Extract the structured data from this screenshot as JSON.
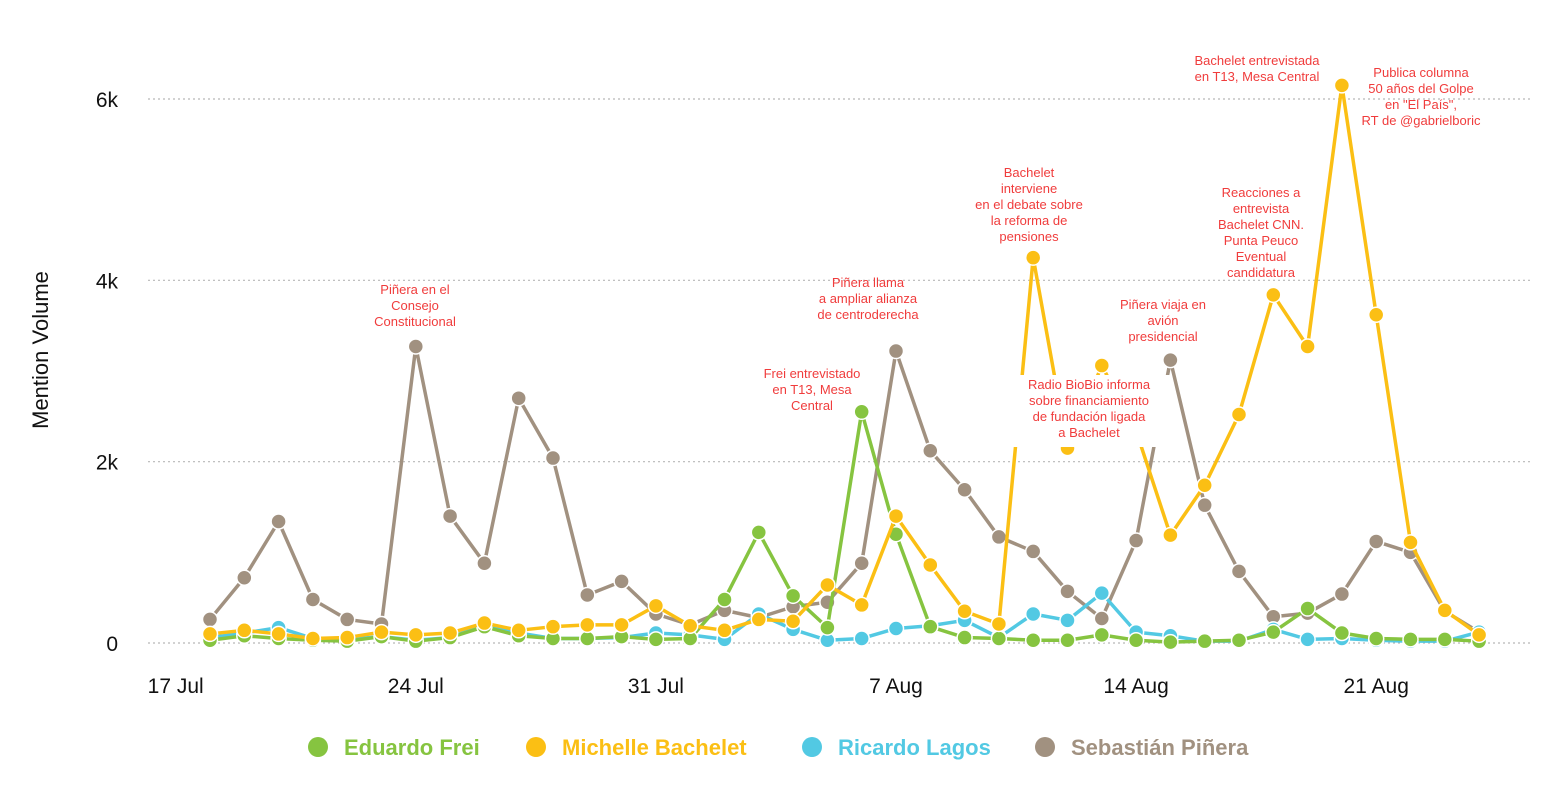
{
  "chart_data": {
    "type": "line",
    "ylabel": "Mention Volume",
    "xlabel": "",
    "ylim": [
      0,
      6500
    ],
    "yticks": [
      0,
      2000,
      4000,
      6000
    ],
    "ytick_labels": [
      "0",
      "2k",
      "4k",
      "6k"
    ],
    "xticks": [
      "17 Jul",
      "24 Jul",
      "31 Jul",
      "7 Aug",
      "14 Aug",
      "21 Aug"
    ],
    "x": [
      "2023-07-18",
      "2023-07-19",
      "2023-07-20",
      "2023-07-21",
      "2023-07-22",
      "2023-07-23",
      "2023-07-24",
      "2023-07-25",
      "2023-07-26",
      "2023-07-27",
      "2023-07-28",
      "2023-07-29",
      "2023-07-30",
      "2023-07-31",
      "2023-08-01",
      "2023-08-02",
      "2023-08-03",
      "2023-08-04",
      "2023-08-05",
      "2023-08-06",
      "2023-08-07",
      "2023-08-08",
      "2023-08-09",
      "2023-08-10",
      "2023-08-11",
      "2023-08-12",
      "2023-08-13",
      "2023-08-14",
      "2023-08-15",
      "2023-08-16",
      "2023-08-17",
      "2023-08-18",
      "2023-08-19",
      "2023-08-20",
      "2023-08-21",
      "2023-08-22",
      "2023-08-23",
      "2023-08-24"
    ],
    "grid": "horizontal dotted",
    "legend_position": "bottom",
    "series": [
      {
        "name": "Eduardo Frei",
        "color": "#86c440",
        "values": [
          30,
          80,
          50,
          30,
          20,
          70,
          20,
          60,
          180,
          80,
          50,
          50,
          70,
          40,
          50,
          480,
          1220,
          520,
          170,
          2550,
          1200,
          180,
          60,
          50,
          30,
          30,
          90,
          30,
          10,
          20,
          30,
          120,
          380,
          110,
          50,
          40,
          40,
          20
        ]
      },
      {
        "name": "Michelle Bachelet",
        "color": "#fbbf14",
        "values": [
          100,
          140,
          100,
          50,
          60,
          120,
          90,
          110,
          220,
          140,
          180,
          200,
          200,
          410,
          190,
          140,
          260,
          240,
          640,
          420,
          1400,
          860,
          350,
          210,
          4250,
          2150,
          3060,
          2340,
          1190,
          1740,
          2520,
          3840,
          3270,
          6150,
          3620,
          1110,
          360,
          90
        ]
      },
      {
        "name": "Ricardo Lagos",
        "color": "#52c9e3",
        "values": [
          60,
          110,
          170,
          50,
          40,
          70,
          30,
          60,
          200,
          110,
          50,
          50,
          60,
          110,
          90,
          40,
          320,
          150,
          30,
          50,
          160,
          190,
          250,
          60,
          320,
          250,
          550,
          120,
          80,
          20,
          20,
          150,
          40,
          50,
          30,
          20,
          20,
          120
        ]
      },
      {
        "name": "Sebastián Piñera",
        "color": "#a19180",
        "values": [
          260,
          720,
          1340,
          480,
          260,
          210,
          3270,
          1400,
          880,
          2700,
          2040,
          530,
          680,
          320,
          200,
          360,
          280,
          400,
          450,
          880,
          3220,
          2120,
          1690,
          1170,
          1010,
          570,
          270,
          1130,
          3120,
          1520,
          790,
          290,
          330,
          540,
          1120,
          1000,
          350,
          120
        ]
      }
    ],
    "annotations": [
      {
        "series": "Sebastián Piñera",
        "x": "2023-07-24",
        "text": [
          "Piñera en el",
          "Consejo",
          "Constitucional"
        ]
      },
      {
        "series": "Eduardo Frei",
        "x": "2023-08-06",
        "text": [
          "Frei entrevistado",
          "en T13, Mesa",
          "Central"
        ]
      },
      {
        "series": "Sebastián Piñera",
        "x": "2023-08-07",
        "text": [
          "Piñera llama",
          "a ampliar alianza",
          "de centroderecha"
        ]
      },
      {
        "series": "Michelle Bachelet",
        "x": "2023-08-11",
        "text": [
          "Bachelet",
          "interviene",
          "en el debate sobre",
          "la reforma de",
          "pensiones"
        ]
      },
      {
        "series": "Michelle Bachelet",
        "x": "2023-08-13",
        "text": [
          "Radio BioBio informa",
          "sobre financiamiento",
          "de fundación ligada",
          "a Bachelet"
        ]
      },
      {
        "series": "Sebastián Piñera",
        "x": "2023-08-15",
        "text": [
          "Piñera viaja en",
          "avión",
          "presidencial"
        ]
      },
      {
        "series": "Michelle Bachelet",
        "x": "2023-08-18",
        "text": [
          "Reacciones a",
          "entrevista",
          "Bachelet CNN.",
          "Punta Peuco",
          "Eventual",
          "candidatura"
        ]
      },
      {
        "series": "Michelle Bachelet",
        "x": "2023-08-20",
        "text": [
          "Bachelet entrevistada",
          "en T13, Mesa Central"
        ]
      },
      {
        "series": "Michelle Bachelet",
        "x": "2023-08-21",
        "text": [
          "Publica columna",
          "50 años del Golpe",
          "en \"El País\",",
          "RT de @gabrielboric"
        ]
      }
    ]
  }
}
